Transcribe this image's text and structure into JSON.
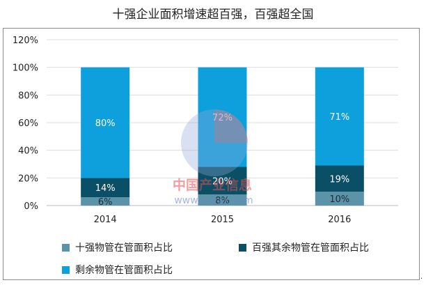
{
  "title": "十强企业面积增速超百强，百强超全国",
  "colors": {
    "top10": "#5b93a8",
    "top100_rest": "#0b4f67",
    "remaining": "#0ea0dc",
    "grid": "#dddddd",
    "axis_text": "#222222"
  },
  "chart_data": {
    "type": "bar",
    "stacked": true,
    "categories": [
      "2014",
      "2015",
      "2016"
    ],
    "series": [
      {
        "name": "十强物管在管面积占比",
        "values": [
          6,
          8,
          10
        ],
        "labels": [
          "6%",
          "8%",
          "10%"
        ]
      },
      {
        "name": "百强其余物管在管面积占比",
        "values": [
          14,
          20,
          19
        ],
        "labels": [
          "14%",
          "20%",
          "19%"
        ]
      },
      {
        "name": "剩余物管在管面积占比",
        "values": [
          80,
          72,
          71
        ],
        "labels": [
          "80%",
          "72%",
          "71%"
        ]
      }
    ],
    "yticks": [
      "0%",
      "20%",
      "40%",
      "60%",
      "80%",
      "100%",
      "120%"
    ],
    "ylim": [
      0,
      120
    ],
    "grid": true,
    "legend_position": "bottom"
  },
  "watermark": {
    "name": "中国产业信息",
    "url": "www.chyxx.com"
  },
  "stray_mark": "."
}
